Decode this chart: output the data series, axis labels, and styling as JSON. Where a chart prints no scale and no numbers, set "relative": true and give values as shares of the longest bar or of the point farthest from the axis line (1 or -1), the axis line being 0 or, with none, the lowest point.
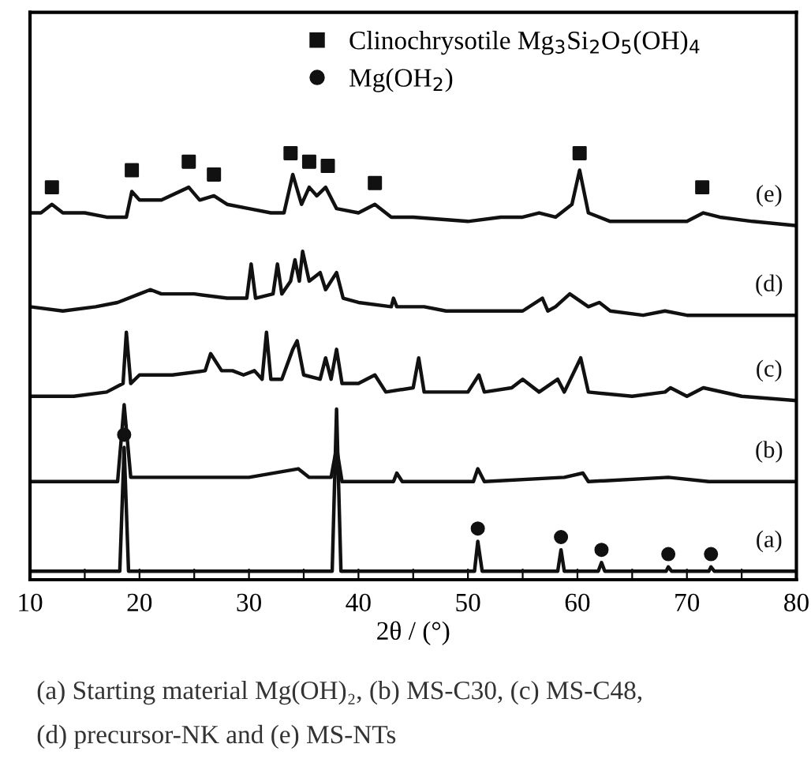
{
  "chart_data": {
    "type": "line",
    "relative": true,
    "xlabel": "2θ / (°)",
    "xlim": [
      10,
      80
    ],
    "xticks": [
      10,
      {
        "value": 15,
        "label": null
      },
      20,
      {
        "value": 25,
        "label": null
      },
      30,
      {
        "value": 35,
        "label": null
      },
      40,
      {
        "value": 45,
        "label": null
      },
      50,
      {
        "value": 55,
        "label": null
      },
      60,
      {
        "value": 65,
        "label": null
      },
      70,
      {
        "value": 75,
        "label": null
      },
      80
    ],
    "grid": false,
    "legend": "top right",
    "tick_labels": "x",
    "line_style": "solid",
    "annotations": [
      "(a) Starting material Mg(OH)₂, (b) MS-C30, (c) MS-C48,",
      "(d) precursor-NK and (e) MS-NTs"
    ],
    "series": [
      {
        "name": "(e)",
        "color": "#111111",
        "x": [
          10,
          11,
          12,
          13,
          15,
          17,
          18.8,
          19.3,
          20,
          22,
          24.5,
          25.5,
          26.8,
          28,
          30,
          32,
          33.2,
          34,
          34.8,
          35.5,
          36.2,
          37,
          38,
          40,
          41.5,
          43,
          45,
          50,
          53,
          55,
          56.5,
          58,
          59.5,
          60.2,
          61,
          63,
          66,
          70,
          71.5,
          73,
          76,
          80
        ],
        "values": [
          0.86,
          0.86,
          0.88,
          0.86,
          0.86,
          0.85,
          0.85,
          0.91,
          0.89,
          0.89,
          0.92,
          0.89,
          0.9,
          0.88,
          0.87,
          0.86,
          0.86,
          0.95,
          0.88,
          0.92,
          0.9,
          0.92,
          0.87,
          0.86,
          0.88,
          0.85,
          0.85,
          0.84,
          0.85,
          0.85,
          0.86,
          0.85,
          0.88,
          0.96,
          0.86,
          0.84,
          0.84,
          0.84,
          0.86,
          0.85,
          0.84,
          0.83
        ]
      },
      {
        "name": "(d)",
        "color": "#111111",
        "x": [
          10,
          13,
          16,
          18,
          20,
          21,
          22,
          25,
          28,
          29.8,
          30.2,
          30.6,
          32.2,
          32.6,
          33,
          33.8,
          34.2,
          34.6,
          34.9,
          35.5,
          36.5,
          37,
          38,
          38.6,
          40,
          43,
          43.2,
          43.5,
          46,
          48,
          52,
          55,
          56.8,
          57.3,
          58,
          59.3,
          61,
          62,
          63,
          66,
          68,
          70,
          75,
          80
        ],
        "values": [
          0.64,
          0.63,
          0.64,
          0.65,
          0.67,
          0.68,
          0.67,
          0.67,
          0.66,
          0.66,
          0.74,
          0.66,
          0.67,
          0.74,
          0.67,
          0.7,
          0.75,
          0.7,
          0.77,
          0.7,
          0.72,
          0.68,
          0.72,
          0.66,
          0.65,
          0.64,
          0.66,
          0.64,
          0.64,
          0.63,
          0.63,
          0.63,
          0.66,
          0.63,
          0.64,
          0.67,
          0.64,
          0.65,
          0.63,
          0.62,
          0.63,
          0.62,
          0.62,
          0.62
        ]
      },
      {
        "name": "(c)",
        "color": "#111111",
        "x": [
          10,
          14,
          17,
          18.5,
          18.8,
          19.2,
          20,
          23,
          26,
          26.5,
          27.5,
          28.5,
          29.5,
          30.5,
          31.2,
          31.6,
          32,
          33,
          34,
          34.4,
          35,
          36.5,
          37,
          37.5,
          38,
          38.5,
          40,
          41.5,
          42.5,
          45,
          45.5,
          46,
          50,
          51,
          51.5,
          54,
          55,
          56.5,
          58.2,
          58.8,
          60.3,
          61,
          65,
          68,
          68.5,
          70,
          71.5,
          75,
          80
        ],
        "values": [
          0.43,
          0.43,
          0.44,
          0.46,
          0.58,
          0.46,
          0.48,
          0.48,
          0.49,
          0.53,
          0.49,
          0.49,
          0.48,
          0.49,
          0.47,
          0.58,
          0.47,
          0.47,
          0.54,
          0.56,
          0.48,
          0.47,
          0.52,
          0.47,
          0.54,
          0.46,
          0.46,
          0.48,
          0.44,
          0.45,
          0.52,
          0.44,
          0.44,
          0.48,
          0.44,
          0.45,
          0.47,
          0.44,
          0.47,
          0.44,
          0.52,
          0.44,
          0.43,
          0.44,
          0.45,
          0.43,
          0.45,
          0.43,
          0.42
        ]
      },
      {
        "name": "(b)",
        "color": "#111111",
        "x": [
          10,
          18,
          18.6,
          19.2,
          25,
          30,
          34.5,
          35.5,
          37.5,
          38,
          38.5,
          43.2,
          43.5,
          44,
          50.5,
          50.9,
          51.5,
          58.8,
          60.5,
          61,
          68.3,
          72,
          80
        ],
        "values": [
          0.23,
          0.23,
          0.41,
          0.24,
          0.24,
          0.24,
          0.26,
          0.24,
          0.24,
          0.31,
          0.23,
          0.23,
          0.25,
          0.23,
          0.23,
          0.26,
          0.23,
          0.24,
          0.25,
          0.23,
          0.24,
          0.23,
          0.23
        ]
      },
      {
        "name": "(a)",
        "color": "#111111",
        "x": [
          10,
          18.2,
          18.6,
          19,
          37.6,
          38,
          38.4,
          50.6,
          50.9,
          51.3,
          58.2,
          58.5,
          58.8,
          61.9,
          62.2,
          62.5,
          68.1,
          68.3,
          68.6,
          72,
          72.2,
          72.5,
          80
        ],
        "values": [
          0.02,
          0.02,
          0.31,
          0.02,
          0.02,
          0.4,
          0.02,
          0.02,
          0.09,
          0.02,
          0.02,
          0.07,
          0.02,
          0.02,
          0.04,
          0.02,
          0.02,
          0.03,
          0.02,
          0.02,
          0.03,
          0.02,
          0.02
        ]
      },
      {
        "name": "Clinochrysotile Mg$_{3}$Si$_{2}$O$_{5}$(OH)$_{4}$",
        "type": "scatter",
        "marker": "square",
        "color": "#111111",
        "x": [
          12,
          19.3,
          24.5,
          26.8,
          33.8,
          35.5,
          37.2,
          41.5,
          60.2,
          71.4
        ],
        "values": [
          0.92,
          0.96,
          0.98,
          0.95,
          1.0,
          0.98,
          0.97,
          0.93,
          1.0,
          0.92
        ]
      },
      {
        "name": "Mg(OH$_{2}$)",
        "type": "scatter",
        "marker": "circle",
        "color": "#111111",
        "x": [
          18.6,
          50.9,
          58.5,
          62.2,
          68.3,
          72.2
        ],
        "values": [
          0.34,
          0.12,
          0.1,
          0.07,
          0.06,
          0.06
        ]
      }
    ]
  }
}
